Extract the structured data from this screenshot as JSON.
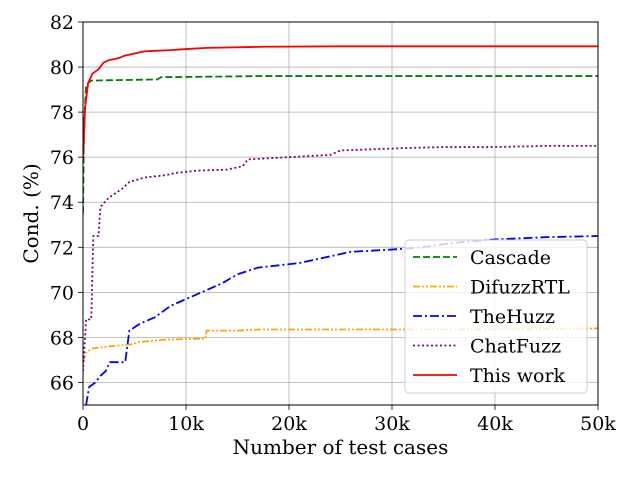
{
  "chart_data": {
    "type": "line",
    "title": "",
    "xlabel": "Number of test cases",
    "ylabel": "Cond. (%)",
    "xlim": [
      0,
      50000
    ],
    "ylim": [
      65,
      82
    ],
    "grid": true,
    "legend_position": "lower-right",
    "x_ticks": [
      {
        "value": 0,
        "label": "0"
      },
      {
        "value": 10000,
        "label": "10k"
      },
      {
        "value": 20000,
        "label": "20k"
      },
      {
        "value": 30000,
        "label": "30k"
      },
      {
        "value": 40000,
        "label": "40k"
      },
      {
        "value": 50000,
        "label": "50k"
      }
    ],
    "y_ticks": [
      {
        "value": 66,
        "label": "66"
      },
      {
        "value": 68,
        "label": "68"
      },
      {
        "value": 70,
        "label": "70"
      },
      {
        "value": 72,
        "label": "72"
      },
      {
        "value": 74,
        "label": "74"
      },
      {
        "value": 76,
        "label": "76"
      },
      {
        "value": 78,
        "label": "78"
      },
      {
        "value": 80,
        "label": "80"
      },
      {
        "value": 82,
        "label": "82"
      }
    ],
    "series": [
      {
        "name": "Cascade",
        "color": "#008000",
        "style": "dashed",
        "points": [
          [
            0,
            73.5
          ],
          [
            100,
            77.5
          ],
          [
            300,
            79.2
          ],
          [
            800,
            79.4
          ],
          [
            7200,
            79.45
          ],
          [
            7600,
            79.55
          ],
          [
            17500,
            79.6
          ],
          [
            50000,
            79.6
          ]
        ]
      },
      {
        "name": "DifuzzRTL",
        "color": "#FFA500",
        "style": "dashdotdot",
        "points": [
          [
            0,
            66.9
          ],
          [
            250,
            67.3
          ],
          [
            800,
            67.5
          ],
          [
            2500,
            67.6
          ],
          [
            4800,
            67.7
          ],
          [
            5500,
            67.8
          ],
          [
            8000,
            67.9
          ],
          [
            11900,
            67.95
          ],
          [
            12000,
            68.3
          ],
          [
            15000,
            68.3
          ],
          [
            17000,
            68.35
          ],
          [
            30000,
            68.35
          ],
          [
            40000,
            68.35
          ],
          [
            50000,
            68.4
          ]
        ]
      },
      {
        "name": "TheHuzz",
        "color": "#0000FF",
        "style": "dashdot",
        "points": [
          [
            300,
            65.0
          ],
          [
            600,
            65.8
          ],
          [
            1200,
            66.0
          ],
          [
            1700,
            66.3
          ],
          [
            2200,
            66.5
          ],
          [
            2600,
            66.9
          ],
          [
            4100,
            66.9
          ],
          [
            4300,
            67.6
          ],
          [
            4500,
            68.3
          ],
          [
            5500,
            68.6
          ],
          [
            7000,
            68.9
          ],
          [
            8500,
            69.4
          ],
          [
            10000,
            69.7
          ],
          [
            11500,
            70.0
          ],
          [
            13500,
            70.4
          ],
          [
            15000,
            70.8
          ],
          [
            17000,
            71.1
          ],
          [
            19000,
            71.2
          ],
          [
            21000,
            71.3
          ],
          [
            23000,
            71.5
          ],
          [
            26000,
            71.8
          ],
          [
            30000,
            71.9
          ],
          [
            33000,
            72.0
          ],
          [
            36000,
            72.2
          ],
          [
            40000,
            72.35
          ],
          [
            45000,
            72.45
          ],
          [
            50000,
            72.5
          ]
        ]
      },
      {
        "name": "ChatFuzz",
        "color": "#800080",
        "style": "dotted",
        "points": [
          [
            0,
            66.5
          ],
          [
            300,
            68.8
          ],
          [
            800,
            68.8
          ],
          [
            1000,
            72.5
          ],
          [
            1500,
            72.5
          ],
          [
            1700,
            73.8
          ],
          [
            2500,
            74.2
          ],
          [
            3800,
            74.6
          ],
          [
            4500,
            74.9
          ],
          [
            6000,
            75.1
          ],
          [
            8000,
            75.2
          ],
          [
            9000,
            75.3
          ],
          [
            11000,
            75.4
          ],
          [
            14000,
            75.45
          ],
          [
            15500,
            75.6
          ],
          [
            16000,
            75.9
          ],
          [
            18000,
            75.95
          ],
          [
            20000,
            76.0
          ],
          [
            24000,
            76.1
          ],
          [
            25000,
            76.3
          ],
          [
            28000,
            76.35
          ],
          [
            31000,
            76.4
          ],
          [
            35000,
            76.45
          ],
          [
            40000,
            76.45
          ],
          [
            45000,
            76.5
          ],
          [
            50000,
            76.5
          ]
        ]
      },
      {
        "name": "This work",
        "color": "#FF0000",
        "style": "solid",
        "points": [
          [
            0,
            75.8
          ],
          [
            200,
            78.2
          ],
          [
            500,
            79.3
          ],
          [
            900,
            79.7
          ],
          [
            1500,
            79.9
          ],
          [
            2000,
            80.2
          ],
          [
            2500,
            80.3
          ],
          [
            3500,
            80.4
          ],
          [
            4000,
            80.5
          ],
          [
            5000,
            80.6
          ],
          [
            6000,
            80.7
          ],
          [
            8500,
            80.75
          ],
          [
            10000,
            80.8
          ],
          [
            12000,
            80.85
          ],
          [
            17500,
            80.9
          ],
          [
            25000,
            80.92
          ],
          [
            50000,
            80.92
          ]
        ]
      }
    ]
  }
}
